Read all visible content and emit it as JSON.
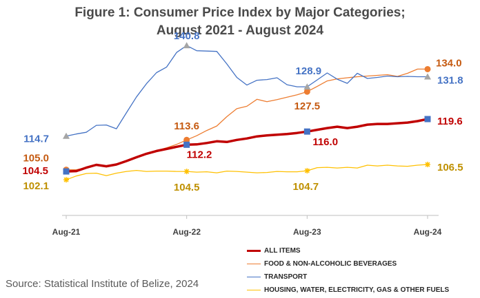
{
  "chart_data": {
    "type": "line",
    "title_line1": "Figure 1: Consumer Price Index by Major Categories;",
    "title_line2": "August 2021 - August 2024",
    "source": "Source: Statistical Institute of Belize, 2024",
    "x_tick_labels": [
      "Aug-21",
      "Aug-22",
      "Aug-23",
      "Aug-24"
    ],
    "x_tick_index": [
      0,
      12,
      24,
      36
    ],
    "ylim": [
      95,
      145
    ],
    "legend_position": "bottom-right",
    "grid": false,
    "series": [
      {
        "name": "ALL ITEMS",
        "color": "#c00000",
        "values": [
          104.5,
          104.6,
          105.6,
          106.4,
          106.0,
          106.5,
          107.5,
          108.6,
          109.6,
          110.4,
          111.0,
          111.6,
          112.2,
          112.3,
          112.7,
          113.2,
          113.0,
          113.6,
          114.0,
          114.6,
          114.9,
          115.1,
          115.3,
          115.6,
          116.0,
          116.5,
          117.0,
          117.4,
          117.0,
          117.4,
          118.0,
          118.2,
          118.2,
          118.4,
          118.6,
          119.0,
          119.6
        ],
        "labels": [
          {
            "i": 0,
            "text": "104.5"
          },
          {
            "i": 12,
            "text": "112.2"
          },
          {
            "i": 24,
            "text": "116.0"
          },
          {
            "i": 36,
            "text": "119.6"
          }
        ]
      },
      {
        "name": "FOOD & NON-ALCOHOLIC BEVERAGES",
        "color": "#ed7d31",
        "values": [
          105.0,
          105.0,
          105.6,
          106.5,
          105.8,
          106.4,
          107.4,
          108.6,
          109.6,
          110.5,
          111.3,
          112.3,
          113.6,
          114.8,
          116.3,
          117.6,
          120.3,
          122.6,
          123.3,
          125.3,
          124.6,
          125.2,
          125.9,
          126.6,
          127.5,
          129.0,
          130.6,
          131.2,
          131.5,
          131.8,
          132.0,
          132.2,
          132.4,
          131.9,
          132.8,
          134.0,
          134.0
        ],
        "labels": [
          {
            "i": 0,
            "text": "105.0"
          },
          {
            "i": 12,
            "text": "113.6"
          },
          {
            "i": 24,
            "text": "127.5"
          },
          {
            "i": 36,
            "text": "134.0"
          }
        ]
      },
      {
        "name": "TRANSPORT",
        "color": "#4472c4",
        "values": [
          114.7,
          115.3,
          115.8,
          117.8,
          117.9,
          116.8,
          121.4,
          126.0,
          129.8,
          133.0,
          134.6,
          138.8,
          140.8,
          139.3,
          139.2,
          139.1,
          135.5,
          131.6,
          129.4,
          130.8,
          131.0,
          131.5,
          129.5,
          128.9,
          128.9,
          130.9,
          132.9,
          131.1,
          129.9,
          132.8,
          131.3,
          131.6,
          132.0,
          131.8,
          131.9,
          131.8,
          131.8
        ],
        "labels": [
          {
            "i": 0,
            "text": "114.7"
          },
          {
            "i": 12,
            "text": "140.8"
          },
          {
            "i": 24,
            "text": "128.9"
          },
          {
            "i": 36,
            "text": "131.8"
          }
        ]
      },
      {
        "name": "HOUSING, WATER, ELECTRICITY, GAS & OTHER FUELS",
        "color": "#ffc000",
        "values": [
          102.1,
          103.2,
          103.9,
          104.0,
          103.3,
          104.0,
          104.5,
          104.8,
          104.5,
          104.6,
          104.6,
          104.5,
          104.5,
          104.3,
          104.4,
          104.1,
          104.6,
          104.5,
          104.3,
          104.1,
          104.2,
          104.5,
          104.4,
          104.4,
          104.7,
          105.6,
          105.7,
          105.5,
          105.7,
          105.5,
          106.3,
          106.1,
          106.3,
          106.1,
          106.0,
          106.3,
          106.5
        ],
        "labels": [
          {
            "i": 0,
            "text": "102.1"
          },
          {
            "i": 12,
            "text": "104.5"
          },
          {
            "i": 24,
            "text": "104.7"
          },
          {
            "i": 36,
            "text": "106.5"
          }
        ]
      }
    ]
  }
}
